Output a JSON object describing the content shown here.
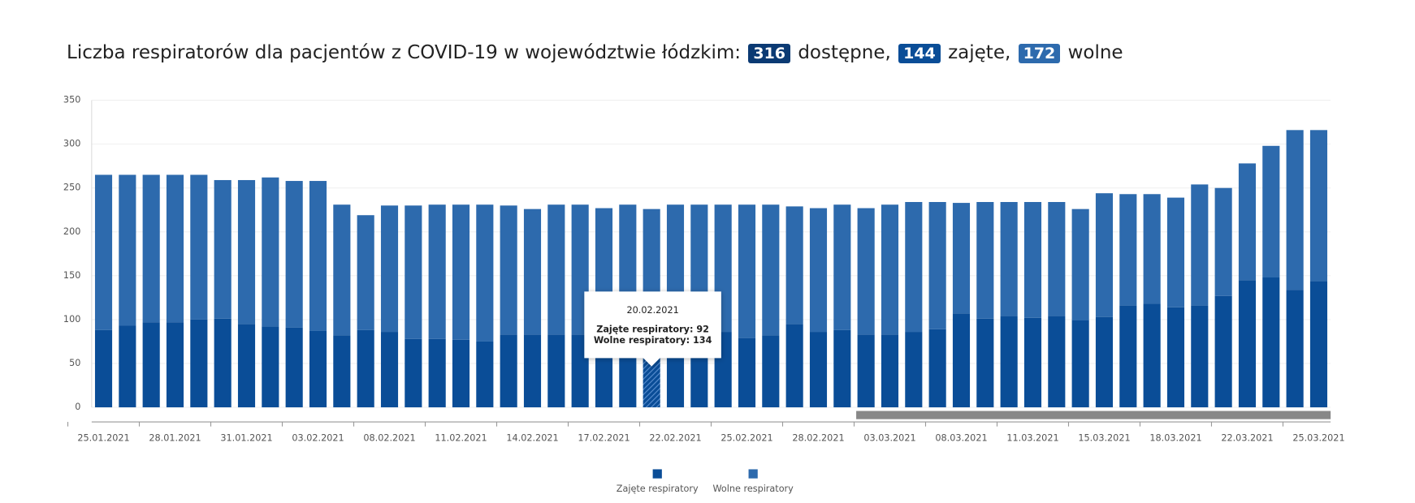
{
  "chart_data": {
    "type": "stacked_bar",
    "title": {
      "text": "Liczba respiratorów dla pacjentów z COVID-19 w województwie łódzkim:",
      "available": 316,
      "available_label": "dostępne,",
      "occupied": 144,
      "occupied_label": "zajęte,",
      "free": 172,
      "free_label": "wolne"
    },
    "categories": [
      "25.01.2021",
      null,
      null,
      "28.01.2021",
      null,
      null,
      "31.01.2021",
      null,
      null,
      "03.02.2021",
      null,
      null,
      "08.02.2021",
      null,
      null,
      "11.02.2021",
      null,
      null,
      "14.02.2021",
      null,
      null,
      "17.02.2021",
      null,
      null,
      "22.02.2021",
      null,
      null,
      "25.02.2021",
      null,
      null,
      "28.02.2021",
      null,
      null,
      "03.03.2021",
      null,
      null,
      "08.03.2021",
      null,
      null,
      "11.03.2021",
      null,
      null,
      "15.03.2021",
      null,
      null,
      "18.03.2021",
      null,
      null,
      "22.03.2021",
      null,
      null,
      "25.03.2021"
    ],
    "series": [
      {
        "name": "Zajęte respiratory",
        "color": "#0a4d97",
        "values": [
          88,
          93,
          97,
          97,
          100,
          101,
          95,
          92,
          91,
          87,
          82,
          88,
          86,
          78,
          78,
          77,
          75,
          83,
          83,
          83,
          83,
          82,
          82,
          92,
          85,
          85,
          86,
          79,
          82,
          95,
          86,
          88,
          83,
          83,
          86,
          89,
          107,
          101,
          104,
          102,
          104,
          99,
          103,
          116,
          118,
          114,
          116,
          127,
          145,
          148,
          134,
          144
        ]
      },
      {
        "name": "Wolne respiratory",
        "color": "#2d6aad",
        "values": [
          177,
          172,
          168,
          168,
          165,
          158,
          164,
          170,
          167,
          171,
          149,
          131,
          144,
          152,
          153,
          154,
          156,
          147,
          143,
          148,
          148,
          145,
          149,
          134,
          146,
          146,
          145,
          152,
          149,
          134,
          141,
          143,
          144,
          148,
          148,
          145,
          126,
          133,
          130,
          132,
          130,
          127,
          141,
          127,
          125,
          125,
          138,
          123,
          133,
          150,
          182,
          172
        ]
      }
    ],
    "ylim": [
      0,
      350
    ],
    "yticks": [
      0,
      50,
      100,
      150,
      200,
      250,
      300,
      350
    ],
    "grid": true,
    "tooltip": {
      "date": "20.02.2021",
      "line1": "Zajęte respiratory: 92",
      "line2": "Wolne respiratory: 134"
    }
  }
}
